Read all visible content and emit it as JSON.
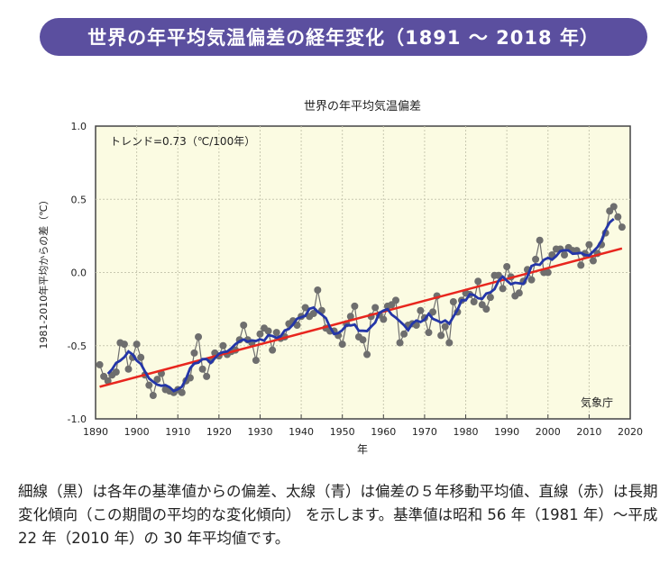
{
  "header": {
    "title": "世界の年平均気温偏差の経年変化（1891 ～ 2018 年）"
  },
  "caption": "細線（黒）は各年の基準値からの偏差、太線（青）は偏差の５年移動平均値、直線（赤）は長期変化傾向（この期間の平均的な変化傾向） を示します。基準値は昭和 56 年（1981 年）～平成 22 年（2010 年）の 30 年平均値です。",
  "chart_data": {
    "type": "line",
    "title": "世界の年平均気温偏差",
    "xlabel": "年",
    "ylabel": "1981-2010年平均からの差（℃）",
    "annotation": "トレンド=0.73（℃/100年）",
    "source": "気象庁",
    "xlim": [
      1890,
      2020
    ],
    "ylim": [
      -1.0,
      1.0
    ],
    "xticks": [
      1890,
      1900,
      1910,
      1920,
      1930,
      1940,
      1950,
      1960,
      1970,
      1980,
      1990,
      2000,
      2010,
      2020
    ],
    "yticks": [
      "1.0",
      "0.5",
      "0.0",
      "-0.5",
      "-1.0"
    ],
    "grid": true,
    "trend_per_100yr": 0.73,
    "colors": {
      "annual": "#6e6e6e",
      "moving_average": "#2436a8",
      "trend": "#e8261e",
      "background": "#fbfbe2"
    },
    "series": [
      {
        "kind": "annual",
        "x_start": 1891,
        "values": [
          -0.63,
          -0.71,
          -0.74,
          -0.7,
          -0.68,
          -0.48,
          -0.49,
          -0.66,
          -0.58,
          -0.49,
          -0.58,
          -0.7,
          -0.77,
          -0.84,
          -0.73,
          -0.69,
          -0.8,
          -0.81,
          -0.82,
          -0.8,
          -0.82,
          -0.74,
          -0.72,
          -0.55,
          -0.44,
          -0.66,
          -0.71,
          -0.6,
          -0.55,
          -0.57,
          -0.5,
          -0.56,
          -0.54,
          -0.53,
          -0.46,
          -0.36,
          -0.46,
          -0.48,
          -0.6,
          -0.42,
          -0.38,
          -0.4,
          -0.53,
          -0.41,
          -0.45,
          -0.44,
          -0.35,
          -0.33,
          -0.36,
          -0.3,
          -0.24,
          -0.3,
          -0.28,
          -0.12,
          -0.26,
          -0.38,
          -0.4,
          -0.4,
          -0.43,
          -0.49,
          -0.35,
          -0.3,
          -0.23,
          -0.44,
          -0.46,
          -0.56,
          -0.3,
          -0.24,
          -0.29,
          -0.32,
          -0.23,
          -0.22,
          -0.19,
          -0.48,
          -0.42,
          -0.36,
          -0.35,
          -0.36,
          -0.26,
          -0.31,
          -0.41,
          -0.27,
          -0.16,
          -0.43,
          -0.37,
          -0.48,
          -0.2,
          -0.27,
          -0.19,
          -0.14,
          -0.15,
          -0.2,
          -0.06,
          -0.22,
          -0.25,
          -0.17,
          -0.02,
          -0.02,
          -0.11,
          0.04,
          -0.03,
          -0.16,
          -0.14,
          -0.06,
          0.02,
          -0.05,
          0.09,
          0.22,
          0.0,
          0.0,
          0.12,
          0.16,
          0.16,
          0.12,
          0.17,
          0.15,
          0.15,
          0.05,
          0.13,
          0.19,
          0.08,
          0.13,
          0.19,
          0.27,
          0.42,
          0.45,
          0.38,
          0.31
        ]
      }
    ]
  }
}
